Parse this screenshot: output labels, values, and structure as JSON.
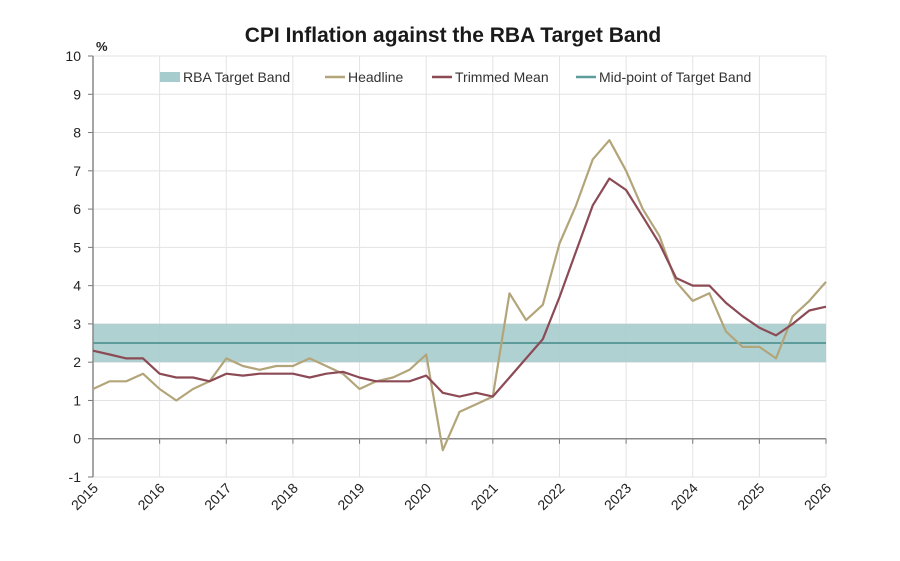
{
  "chart_data": {
    "type": "line",
    "title": "CPI Inflation against the RBA Target Band",
    "ylabel": "%",
    "xlabel": "",
    "ylim": [
      -1,
      10
    ],
    "xlim": [
      2015,
      2026
    ],
    "yticks": [
      -1,
      0,
      1,
      2,
      3,
      4,
      5,
      6,
      7,
      8,
      9,
      10
    ],
    "xticks": [
      "2015",
      "2016",
      "2017",
      "2018",
      "2019",
      "2020",
      "2021",
      "2022",
      "2023",
      "2024",
      "2025",
      "2026"
    ],
    "grid": true,
    "legend_position": "top",
    "band": {
      "name": "RBA Target Band",
      "lower": 2,
      "upper": 3,
      "color": "#a7cccd"
    },
    "midpoint": {
      "name": "Mid-point of Target Band",
      "value": 2.5,
      "color": "#5e9c9c"
    },
    "x": [
      2015.0,
      2015.25,
      2015.5,
      2015.75,
      2016.0,
      2016.25,
      2016.5,
      2016.75,
      2017.0,
      2017.25,
      2017.5,
      2017.75,
      2018.0,
      2018.25,
      2018.5,
      2018.75,
      2019.0,
      2019.25,
      2019.5,
      2019.75,
      2020.0,
      2020.25,
      2020.5,
      2020.75,
      2021.0,
      2021.25,
      2021.5,
      2021.75,
      2022.0,
      2022.25,
      2022.5,
      2022.75,
      2023.0,
      2023.25,
      2023.5,
      2023.75,
      2024.0,
      2024.25,
      2024.5,
      2024.75,
      2025.0,
      2025.25,
      2025.5,
      2025.75,
      2026.0
    ],
    "series": [
      {
        "name": "Headline",
        "color": "#b3a57a",
        "values": [
          1.3,
          1.5,
          1.5,
          1.7,
          1.3,
          1.0,
          1.3,
          1.5,
          2.1,
          1.9,
          1.8,
          1.9,
          1.9,
          2.1,
          1.9,
          1.7,
          1.3,
          1.5,
          1.6,
          1.8,
          2.2,
          -0.3,
          0.7,
          0.9,
          1.1,
          3.8,
          3.1,
          3.5,
          5.1,
          6.1,
          7.3,
          7.8,
          7.0,
          6.0,
          5.3,
          4.1,
          3.6,
          3.8,
          2.8,
          2.4,
          2.4,
          2.1,
          3.2,
          3.6,
          4.1
        ]
      },
      {
        "name": "Trimmed Mean",
        "color": "#8c4a55",
        "values": [
          2.3,
          2.2,
          2.1,
          2.1,
          1.7,
          1.6,
          1.6,
          1.5,
          1.7,
          1.65,
          1.7,
          1.7,
          1.7,
          1.6,
          1.7,
          1.75,
          1.6,
          1.5,
          1.5,
          1.5,
          1.65,
          1.2,
          1.1,
          1.2,
          1.1,
          1.6,
          2.1,
          2.6,
          3.7,
          4.9,
          6.1,
          6.8,
          6.5,
          5.8,
          5.1,
          4.2,
          4.0,
          4.0,
          3.55,
          3.2,
          2.9,
          2.7,
          3.0,
          3.35,
          3.45
        ]
      }
    ],
    "legend": [
      {
        "label": "RBA Target Band",
        "kind": "band"
      },
      {
        "label": "Headline",
        "kind": "line",
        "series": "Headline"
      },
      {
        "label": "Trimmed Mean",
        "kind": "line",
        "series": "Trimmed Mean"
      },
      {
        "label": "Mid-point of Target Band",
        "kind": "line",
        "series": "midpoint"
      }
    ]
  }
}
